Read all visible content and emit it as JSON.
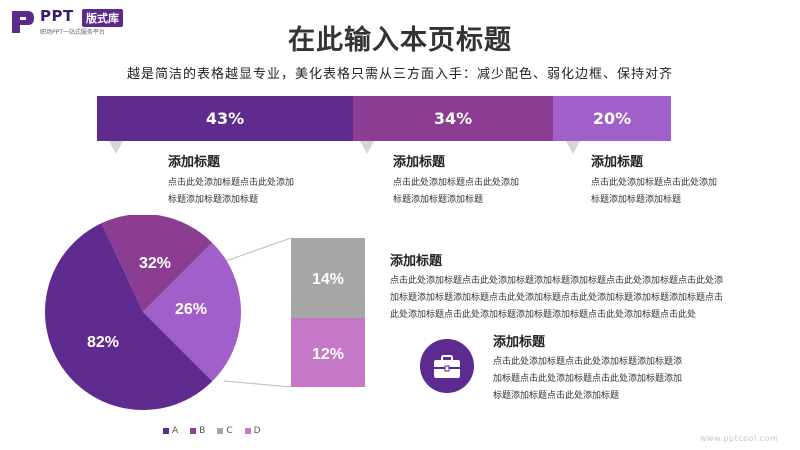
{
  "logo": {
    "brand": "PPT",
    "badge": "版式库",
    "tagline": "职场PPT一站式服务平台"
  },
  "header": {
    "title": "在此输入本页标题",
    "subtitle": "越是简洁的表格越显专业，美化表格只需从三方面入手：减少配色、弱化边框、保持对齐"
  },
  "colors": {
    "purple_dark": "#5f2b8e",
    "purple_mid": "#8b3e91",
    "purple_light": "#a15fc9",
    "gray": "#a6a6a6",
    "orchid": "#c678c8"
  },
  "top_blocks": [
    {
      "title": "添加标题",
      "text": [
        "点击此处添加标题点击此处添加",
        "标题添加标题添加标题"
      ]
    },
    {
      "title": "添加标题",
      "text": [
        "点击此处添加标题点击此处添加",
        "标题添加标题添加标题"
      ]
    },
    {
      "title": "添加标题",
      "text": [
        "点击此处添加标题点击此处添加",
        "标题添加标题添加标题"
      ]
    }
  ],
  "right_block_1": {
    "title": "添加标题",
    "text": [
      "点击此处添加标题点击此处添加标题添加标题添加标题点击此处添加标题点击此处添",
      "加标题添加标题添加标题点击此处添加标题点击此处添加标题添加标题添加标题点击",
      "此处添加标题点击此处添加标题添加标题添加标题点击此处添加标题点击此处"
    ]
  },
  "right_block_2": {
    "icon": "briefcase-icon",
    "title": "添加标题",
    "text": [
      "点击此处添加标题点击此处添加标题添加标题添",
      "加标题点击此处添加标题点击此处添加标题添加",
      "标题添加标题点击此处添加标题"
    ]
  },
  "watermark": "www.pptcool.com",
  "chart_data": [
    {
      "type": "bar",
      "orientation": "horizontal-stacked",
      "values": [
        43,
        34,
        20
      ],
      "labels": [
        "43%",
        "34%",
        "20%"
      ]
    },
    {
      "type": "pie",
      "categories": [
        "A",
        "B",
        "C",
        "D"
      ],
      "slices": [
        {
          "label": "82%",
          "value": 82
        },
        {
          "label": "32%",
          "value": 32
        },
        {
          "label": "26%",
          "value": 26
        }
      ],
      "breakout_bar": [
        {
          "label": "14%",
          "value": 14
        },
        {
          "label": "12%",
          "value": 12
        }
      ],
      "legend": [
        "A",
        "B",
        "C",
        "D"
      ],
      "legend_position": "bottom"
    }
  ]
}
